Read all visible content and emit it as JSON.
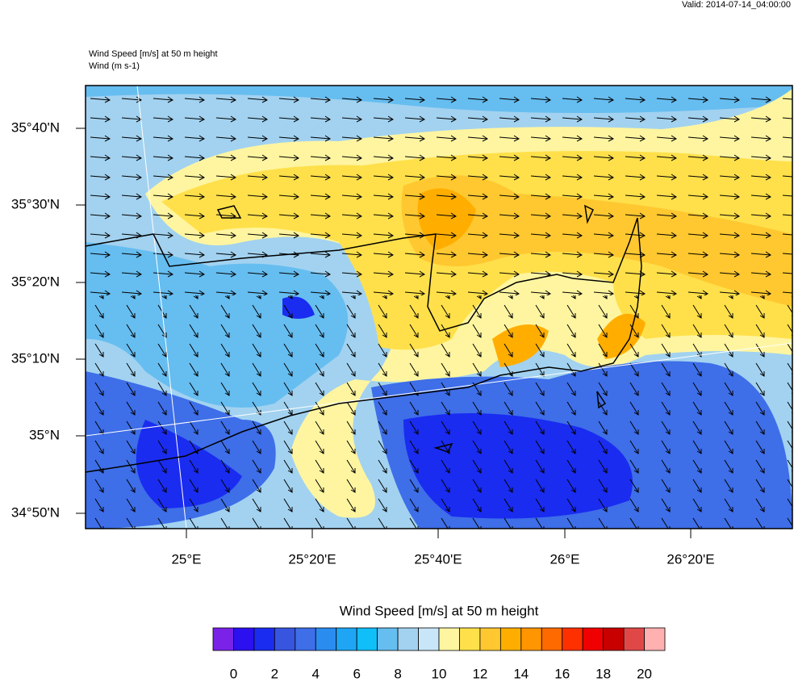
{
  "header": {
    "valid": "Valid: 2014-07-14_04:00:00",
    "field_title": "Wind Speed [m/s] at 50 m height",
    "vector_title": "Wind   (m s-1)"
  },
  "map": {
    "lat_labels": [
      "35°40'N",
      "35°30'N",
      "35°20'N",
      "35°10'N",
      "35°N",
      "34°50'N"
    ],
    "lon_labels": [
      "25°E",
      "25°20'E",
      "25°40'E",
      "26°E",
      "26°20'E"
    ]
  },
  "colorbar": {
    "title": "Wind Speed [m/s] at 50 m height",
    "colors": [
      "#7a22e8",
      "#2c10f0",
      "#1a2cf0",
      "#3855e0",
      "#3e6ee8",
      "#2b8cf0",
      "#1ea6f5",
      "#10bef8",
      "#66bdf0",
      "#a2d2f0",
      "#c8e6f8",
      "#fff5a0",
      "#ffe04a",
      "#ffc830",
      "#ffae00",
      "#ff9500",
      "#ff6a00",
      "#ff3000",
      "#f00000",
      "#c80000",
      "#e04848",
      "#ffb0b0"
    ],
    "lim": [
      -1,
      21
    ],
    "ticks": [
      0,
      2,
      4,
      6,
      8,
      10,
      12,
      14,
      16,
      18,
      20
    ]
  }
}
